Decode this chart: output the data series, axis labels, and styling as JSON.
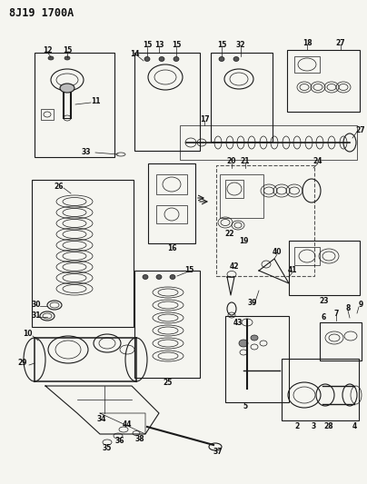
{
  "title": "8J19 1700A",
  "bg_color": "#f5f5f0",
  "fig_width": 4.04,
  "fig_height": 5.33,
  "dpi": 100
}
